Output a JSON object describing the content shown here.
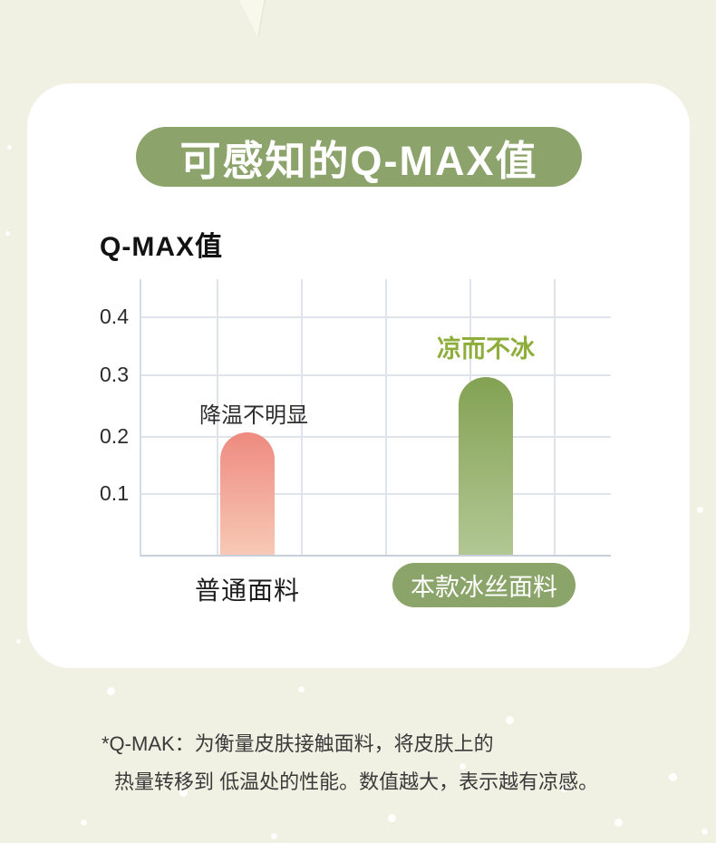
{
  "page": {
    "title_badge": "可感知的Q-MAX值",
    "section_heading": "Q-MAX值",
    "footnote_line1": "*Q-MAK：为衡量皮肤接触面料，将皮肤上的",
    "footnote_line2": "热量转移到 低温处的性能。数值越大，表示越有凉感。"
  },
  "colors": {
    "background": "#f0f1e3",
    "card": "#ffffff",
    "accent_green": "#8ca46b",
    "annotation_green": "#8fad3b",
    "grid": "#dfe4ec",
    "bar_pink_top": "#ee8a80",
    "bar_pink_bottom": "#f7c9b5",
    "bar_green_top": "#83a253",
    "bar_green_bottom": "#b2c794"
  },
  "chart_data": {
    "type": "bar",
    "title": "Q-MAX值",
    "categories": [
      "普通面料",
      "本款冰丝面料"
    ],
    "values": [
      0.2,
      0.29
    ],
    "annotations": [
      "降温不明显",
      "凉而不冰"
    ],
    "yticks": [
      0.1,
      0.2,
      0.3,
      0.4
    ],
    "ytick_labels_top_down": [
      "0.4",
      "0.3",
      "0.2",
      "0.1"
    ],
    "ylim": [
      0,
      0.45
    ],
    "xlabel": "",
    "ylabel": "",
    "grid": true,
    "legend": false,
    "bar_styles": [
      {
        "name": "普通面料",
        "gradient_top": "#ee8a80",
        "gradient_bottom": "#f7c9b5"
      },
      {
        "name": "本款冰丝面料",
        "gradient_top": "#83a253",
        "gradient_bottom": "#b2c794"
      }
    ]
  }
}
